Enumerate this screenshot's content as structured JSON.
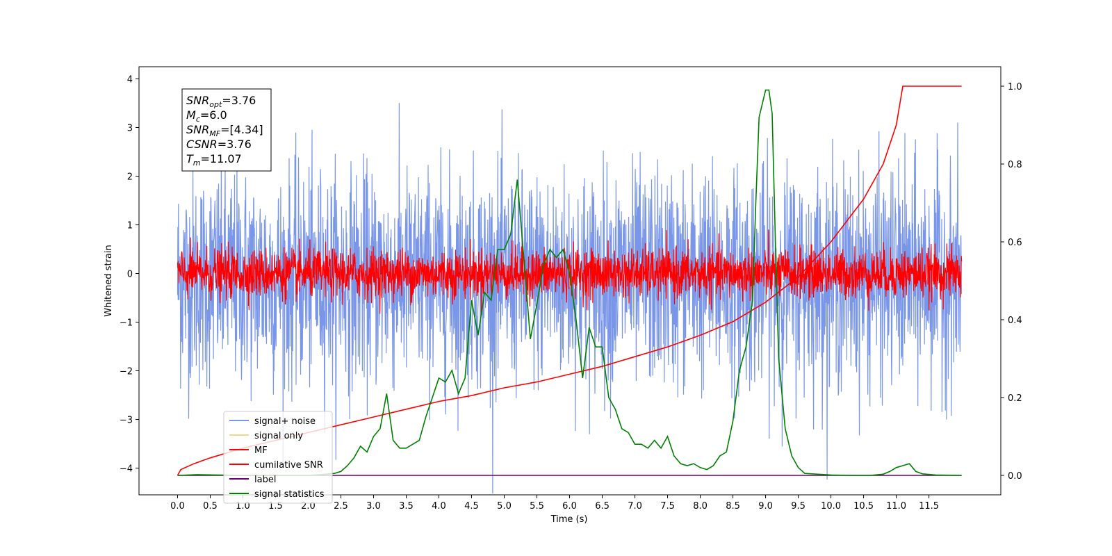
{
  "chart_data": {
    "type": "line",
    "title": "",
    "xlabel": "Time (s)",
    "ylabel": "Whitened strain",
    "xlim": [
      -0.59,
      12.6
    ],
    "ylim": [
      -4.55,
      4.25
    ],
    "y2lim": [
      -0.05,
      1.05
    ],
    "x_ticks": [
      "0.0",
      "0.5",
      "1.0",
      "1.5",
      "2.0",
      "2.5",
      "3.0",
      "3.5",
      "4.0",
      "4.5",
      "5.0",
      "5.5",
      "6.0",
      "6.5",
      "7.0",
      "7.5",
      "8.0",
      "8.5",
      "9.0",
      "9.5",
      "10.0",
      "10.5",
      "11.0",
      "11.5"
    ],
    "y_ticks": [
      "4",
      "3",
      "2",
      "1",
      "0",
      "−1",
      "−2",
      "−3",
      "−4"
    ],
    "y2_ticks": [
      "1.0",
      "0.8",
      "0.6",
      "0.4",
      "0.2",
      "0.0"
    ],
    "legend_placement": "lower-left",
    "annotation": {
      "lines": [
        {
          "base": "SNR",
          "sub": "opt",
          "rest": "=3.76"
        },
        {
          "base": "M",
          "sub": "c",
          "rest": "=6.0"
        },
        {
          "base": "SNR",
          "sub": "MF",
          "rest": "=[4.34]"
        },
        {
          "base": "CSNR",
          "sub": "",
          "rest": "=3.76"
        },
        {
          "base": "T",
          "sub": "m",
          "rest": "=11.07"
        }
      ]
    },
    "series": [
      {
        "name": "signal+ noise",
        "color": "#7a96e8",
        "axis": "left",
        "kind": "noise",
        "center": -0.1,
        "spread": 1.1,
        "x_range": [
          0.0,
          12.0
        ]
      },
      {
        "name": "signal only",
        "color": "#f5d58a",
        "axis": "left",
        "kind": "flat",
        "x_range": [
          0.0,
          12.0
        ]
      },
      {
        "name": "MF",
        "color": "#ff0000",
        "axis": "left",
        "kind": "noise",
        "center": 0.0,
        "spread": 0.25,
        "x_range": [
          0.0,
          12.0
        ]
      },
      {
        "name": "cumilative SNR",
        "color": "#ff0000",
        "axis": "right",
        "x": [
          0.0,
          0.05,
          0.25,
          0.5,
          1.0,
          1.5,
          2.0,
          2.5,
          3.0,
          3.5,
          4.0,
          4.5,
          5.0,
          5.5,
          6.0,
          6.5,
          7.0,
          7.5,
          8.0,
          8.5,
          9.0,
          9.5,
          10.0,
          10.5,
          10.8,
          11.0,
          11.07,
          11.1,
          11.5,
          12.0
        ],
        "y": [
          0.0,
          0.015,
          0.03,
          0.045,
          0.07,
          0.09,
          0.11,
          0.13,
          0.15,
          0.17,
          0.19,
          0.205,
          0.225,
          0.24,
          0.26,
          0.28,
          0.305,
          0.33,
          0.36,
          0.395,
          0.445,
          0.51,
          0.6,
          0.71,
          0.8,
          0.9,
          0.97,
          1.0,
          1.0,
          1.0
        ]
      },
      {
        "name": "label",
        "color": "#6a006a",
        "axis": "right",
        "x": [
          0.0,
          12.0
        ],
        "y": [
          0.0,
          0.0
        ]
      },
      {
        "name": "signal statistics",
        "color": "#008000",
        "axis": "right",
        "x": [
          0.0,
          0.3,
          0.6,
          1.0,
          1.5,
          2.0,
          2.2,
          2.4,
          2.5,
          2.6,
          2.7,
          2.8,
          2.9,
          3.0,
          3.1,
          3.2,
          3.3,
          3.4,
          3.5,
          3.6,
          3.7,
          3.8,
          3.9,
          4.0,
          4.1,
          4.2,
          4.3,
          4.4,
          4.5,
          4.6,
          4.7,
          4.8,
          4.9,
          5.0,
          5.1,
          5.2,
          5.3,
          5.4,
          5.5,
          5.6,
          5.7,
          5.8,
          5.9,
          6.0,
          6.1,
          6.2,
          6.3,
          6.4,
          6.5,
          6.6,
          6.7,
          6.8,
          6.9,
          7.0,
          7.1,
          7.2,
          7.3,
          7.4,
          7.5,
          7.6,
          7.7,
          7.8,
          7.9,
          8.0,
          8.1,
          8.2,
          8.3,
          8.4,
          8.5,
          8.6,
          8.7,
          8.8,
          8.85,
          8.9,
          9.0,
          9.05,
          9.1,
          9.15,
          9.2,
          9.3,
          9.4,
          9.5,
          9.6,
          9.8,
          10.0,
          10.3,
          10.6,
          10.8,
          10.9,
          11.0,
          11.1,
          11.2,
          11.3,
          11.4,
          11.6,
          12.0
        ],
        "y": [
          0.0,
          0.002,
          0.001,
          0.0,
          0.0,
          0.0,
          0.002,
          0.005,
          0.01,
          0.025,
          0.045,
          0.075,
          0.06,
          0.1,
          0.12,
          0.21,
          0.09,
          0.07,
          0.07,
          0.08,
          0.09,
          0.15,
          0.2,
          0.25,
          0.24,
          0.27,
          0.21,
          0.25,
          0.45,
          0.36,
          0.47,
          0.45,
          0.58,
          0.58,
          0.62,
          0.76,
          0.56,
          0.35,
          0.44,
          0.54,
          0.58,
          0.56,
          0.58,
          0.52,
          0.4,
          0.25,
          0.38,
          0.33,
          0.33,
          0.2,
          0.17,
          0.12,
          0.11,
          0.08,
          0.08,
          0.07,
          0.09,
          0.07,
          0.1,
          0.05,
          0.03,
          0.025,
          0.03,
          0.02,
          0.015,
          0.025,
          0.05,
          0.06,
          0.14,
          0.27,
          0.33,
          0.45,
          0.7,
          0.92,
          0.99,
          0.99,
          0.93,
          0.6,
          0.3,
          0.12,
          0.05,
          0.02,
          0.005,
          0.003,
          0.001,
          0.0,
          0.0,
          0.003,
          0.01,
          0.02,
          0.025,
          0.03,
          0.01,
          0.004,
          0.001,
          0.0
        ]
      }
    ]
  }
}
